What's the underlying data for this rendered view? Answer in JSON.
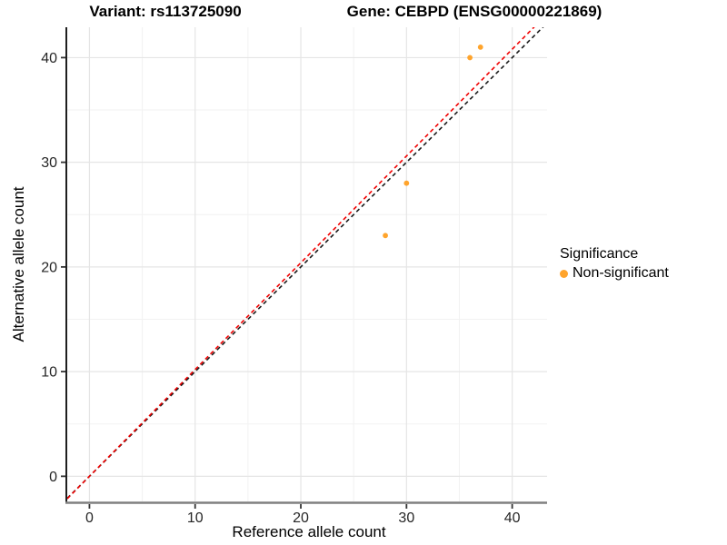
{
  "header": {
    "variant_title": "Variant: rs113725090",
    "gene_title": "Gene: CEBPD (ENSG00000221869)"
  },
  "chart_data": {
    "type": "scatter",
    "title": "Variant: rs113725090 | Gene: CEBPD (ENSG00000221869)",
    "xlabel": "Reference allele count",
    "ylabel": "Alternative allele count",
    "xlim": [
      -2.1,
      43.3
    ],
    "ylim": [
      -2.4,
      42.9
    ],
    "x_ticks": [
      0,
      10,
      20,
      30,
      40
    ],
    "y_ticks": [
      0,
      10,
      20,
      30,
      40
    ],
    "x_minor": [
      5,
      15,
      25,
      35
    ],
    "y_minor": [
      5,
      15,
      25,
      35
    ],
    "grid": "major+minor",
    "legend_position": "right-middle",
    "series": [
      {
        "name": "Non-significant",
        "marker": "circle",
        "color": "#FFA42C",
        "points": [
          [
            28,
            23
          ],
          [
            30,
            28
          ],
          [
            36,
            40
          ],
          [
            37,
            41
          ]
        ]
      }
    ],
    "reference_lines": [
      {
        "name": "identity-line",
        "slope": 1.0,
        "intercept": 0,
        "linestyle": "dashed",
        "color": "#1A1A1A"
      },
      {
        "name": "fitted-line",
        "slope": 1.02,
        "intercept": 0,
        "linestyle": "dashed",
        "color": "#F00000"
      }
    ]
  },
  "legend": {
    "title": "Significance",
    "items": [
      {
        "label": "Non-significant",
        "marker": "circle",
        "color": "#FFA42C"
      }
    ]
  },
  "colors": {
    "background": "#FFFFFF",
    "grid_major": "#E5E5E5",
    "grid_minor": "#F2F2F2",
    "axis_line_left": "#1F1F1F",
    "axis_line_bottom": "#808080",
    "tick_mark": "#333333",
    "tick_label": "#262626"
  }
}
